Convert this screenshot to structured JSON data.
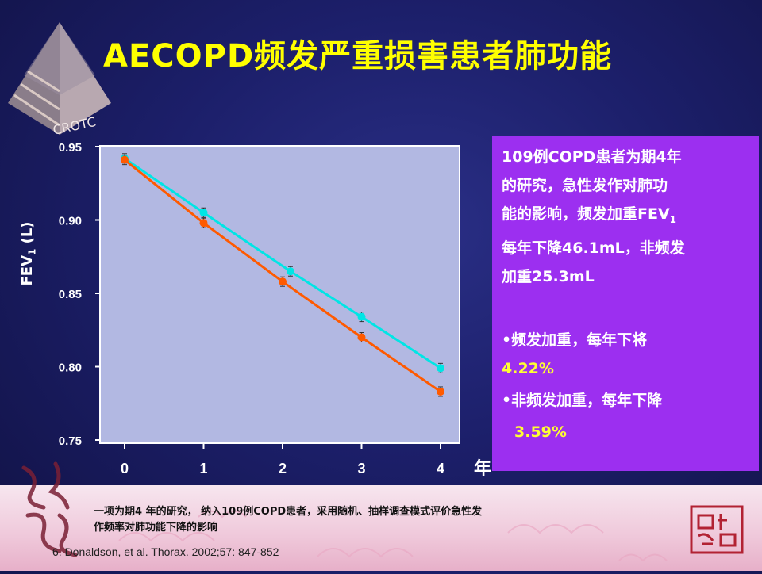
{
  "header": {
    "title": "AECOPD频发严重损害患者肺功能"
  },
  "logo": {
    "text": "CROTC"
  },
  "chart_data": {
    "type": "line",
    "x": [
      0,
      1,
      2,
      3,
      4
    ],
    "x_tick_labels": [
      "0",
      "1",
      "2",
      "3",
      "4"
    ],
    "xunit": "年",
    "ylabel_main": "FEV",
    "ylabel_sub": "1",
    "ylabel_tail": " (L)",
    "ylim": [
      0.75,
      0.95
    ],
    "y_tick_labels": [
      "0.95",
      "0.90",
      "0.85",
      "0.80",
      "0.75"
    ],
    "y_ticks": [
      0.95,
      0.9,
      0.85,
      0.8,
      0.75
    ],
    "series": [
      {
        "color": "#00e5e5",
        "x": [
          0,
          1,
          2.1,
          3,
          4
        ],
        "values": [
          0.942,
          0.905,
          0.865,
          0.834,
          0.799
        ]
      },
      {
        "color": "#ff5a00",
        "x": [
          0,
          1,
          2,
          3,
          4
        ],
        "values": [
          0.941,
          0.898,
          0.858,
          0.82,
          0.783
        ]
      }
    ],
    "grid": false
  },
  "infobox": {
    "para1_a": "109例COPD患者为期4年",
    "para1_b": "的研究，急性发作对肺功",
    "para1_c_pre": "能的影响，频发加重FEV",
    "para1_c_sub": "1",
    "para1_d": "每年下降46.1mL，非频发",
    "para1_e": "加重25.3mL",
    "bullet1": "•频发加重，每年下将",
    "bullet1_value": "4.22%",
    "bullet2": "•非频发加重，每年下降",
    "bullet2_value": "3.59%"
  },
  "footer": {
    "note_line1": "一项为期4 年的研究， 纳入109例COPD患者，采用随机、抽样调查模式评价急性发",
    "note_line2": "作频率对肺功能下降的影响",
    "reference": "6. Donaldson, et al. Thorax. 2002;57: 847-852"
  },
  "colors": {
    "title": "#ffff00",
    "infobox_bg": "#9c2ff0",
    "highlight": "#ffff33"
  }
}
